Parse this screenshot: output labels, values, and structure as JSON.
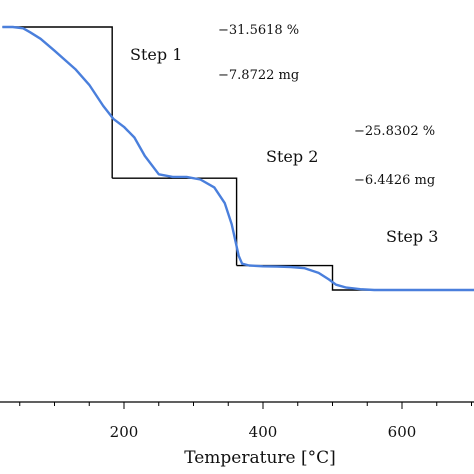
{
  "chart_data": {
    "type": "line",
    "title": "",
    "xlabel": "Temperature [°C]",
    "ylabel": "",
    "xlim": [
      25,
      725
    ],
    "ylim": [
      0,
      115
    ],
    "x_ticks": [
      200,
      400,
      600
    ],
    "grid": false,
    "line_color": "#4a7fdc",
    "step_color": "#000000",
    "series": [
      {
        "x": [
          25,
          40,
          55,
          65,
          80,
          100,
          130,
          150,
          170,
          185,
          200,
          215,
          230,
          250,
          270,
          290,
          310,
          330,
          345,
          355,
          360,
          365,
          370,
          380,
          400,
          420,
          440,
          460,
          480,
          495,
          505,
          520,
          540,
          560,
          580,
          600,
          650,
          700,
          725
        ],
        "y": [
          100,
          100,
          99.5,
          98,
          95.5,
          91,
          84,
          78,
          70,
          65,
          62,
          58,
          51,
          44,
          43,
          43,
          42,
          39,
          33,
          25,
          19,
          13,
          10,
          9.3,
          9,
          8.9,
          8.7,
          8.3,
          6.5,
          4,
          2,
          0.9,
          0.3,
          0,
          0,
          0,
          0,
          0,
          0
        ]
      }
    ],
    "steps": [
      {
        "label": "Step 1",
        "percent": "−31.5618 %",
        "mass": "−7.8722 mg",
        "x_start": 25,
        "x_end": 183,
        "y_start": 100,
        "y_end": 42.5
      },
      {
        "label": "Step 2",
        "percent": "−25.8302 %",
        "mass": "−6.4426 mg",
        "x_start": 183,
        "x_end": 362,
        "y_start": 42.5,
        "y_end": 9.3
      },
      {
        "label": "Step 3",
        "percent": "",
        "mass": "",
        "x_start": 362,
        "x_end": 500,
        "y_start": 9.3,
        "y_end": 0
      }
    ]
  }
}
